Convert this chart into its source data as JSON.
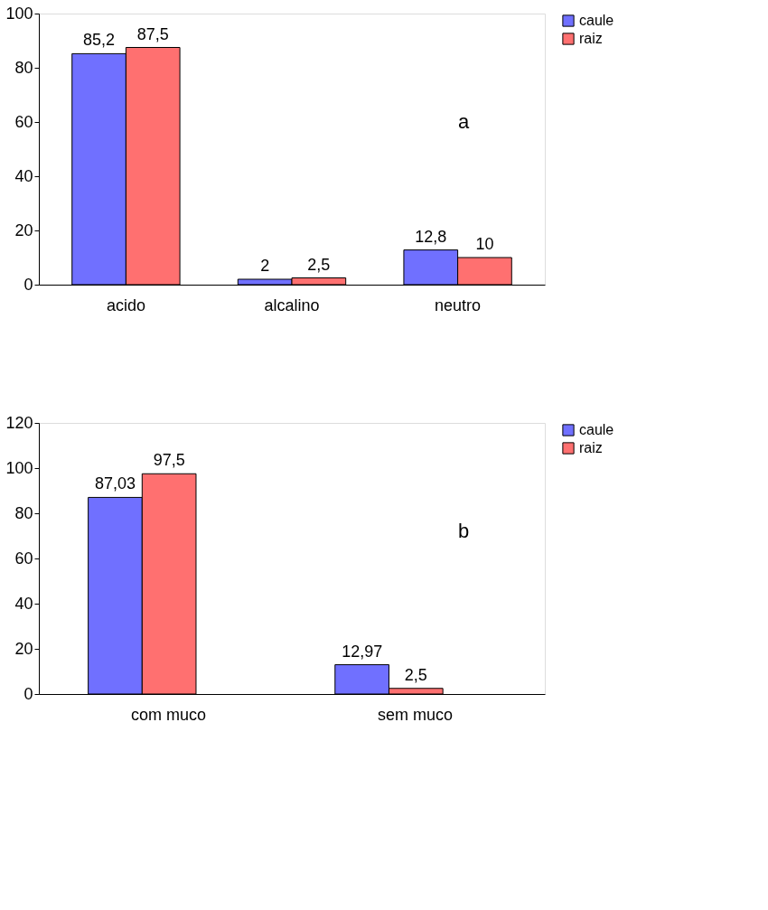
{
  "chart_data": [
    {
      "type": "bar",
      "categories": [
        "acido",
        "alcalino",
        "neutro"
      ],
      "ylim": [
        0,
        100
      ],
      "yticks": [
        0,
        20,
        40,
        60,
        80,
        100
      ],
      "grid": false,
      "legend": "right",
      "annotations": [
        "a"
      ],
      "series": [
        {
          "name": "caule",
          "color": "#7070ff",
          "values": [
            85.2,
            2,
            12.8
          ],
          "value_labels": [
            "85,2",
            "2",
            "12,8"
          ]
        },
        {
          "name": "raiz",
          "color": "#ff7070",
          "values": [
            87.5,
            2.5,
            10
          ],
          "value_labels": [
            "87,5",
            "2,5",
            "10"
          ]
        }
      ]
    },
    {
      "type": "bar",
      "categories": [
        "com muco",
        "sem muco"
      ],
      "ylim": [
        0,
        120
      ],
      "yticks": [
        0,
        20,
        40,
        60,
        80,
        100,
        120
      ],
      "grid": false,
      "legend": "right",
      "annotations": [
        "b"
      ],
      "series": [
        {
          "name": "caule",
          "color": "#7070ff",
          "values": [
            87.03,
            12.97
          ],
          "value_labels": [
            "87,03",
            "12,97"
          ]
        },
        {
          "name": "raiz",
          "color": "#ff7070",
          "values": [
            97.5,
            2.5
          ],
          "value_labels": [
            "97,5",
            "2,5"
          ]
        }
      ]
    }
  ]
}
